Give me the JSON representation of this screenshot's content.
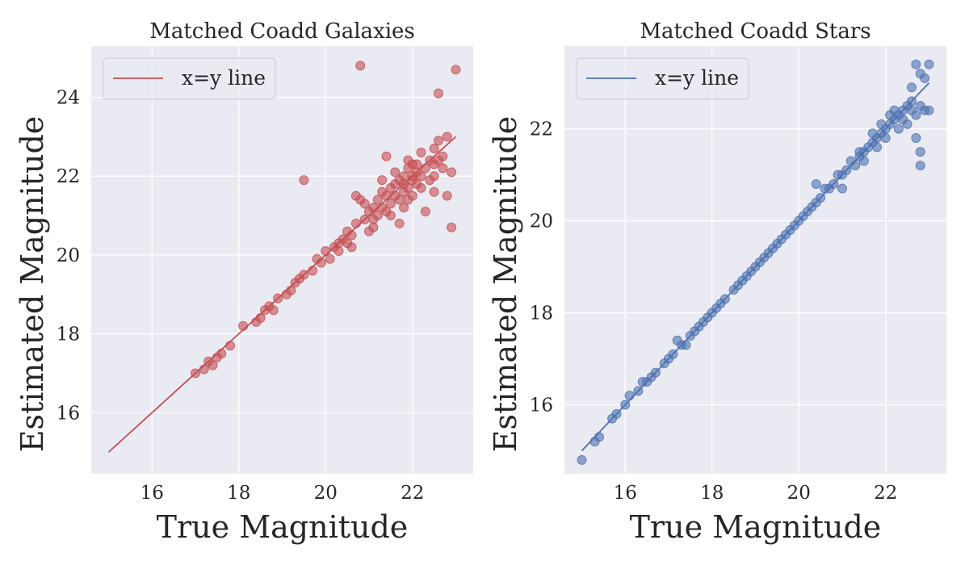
{
  "chart_data": [
    {
      "type": "scatter",
      "title": "Matched Coadd Galaxies",
      "xlabel": "True Magnitude",
      "ylabel": "Estimated Magnitude",
      "xlim": [
        14.6,
        23.4
      ],
      "ylim": [
        14.45,
        25.3
      ],
      "xticks": [
        16,
        18,
        20,
        22
      ],
      "yticks": [
        16,
        18,
        20,
        22,
        24
      ],
      "grid": true,
      "legend": {
        "position": "top-left",
        "entries": [
          "x=y line"
        ]
      },
      "colors": {
        "points": "#c44e52",
        "line": "#c44e52",
        "background": "#eaeaf2",
        "grid": "#ffffff"
      },
      "series": [
        {
          "name": "x=y line",
          "kind": "line",
          "x": [
            15.0,
            23.0
          ],
          "y": [
            15.0,
            23.0
          ]
        },
        {
          "kind": "scatter",
          "points": [
            [
              17.0,
              17.0
            ],
            [
              17.2,
              17.1
            ],
            [
              17.3,
              17.3
            ],
            [
              17.4,
              17.2
            ],
            [
              17.5,
              17.4
            ],
            [
              17.6,
              17.5
            ],
            [
              17.8,
              17.7
            ],
            [
              18.1,
              18.2
            ],
            [
              18.4,
              18.3
            ],
            [
              18.5,
              18.4
            ],
            [
              18.6,
              18.6
            ],
            [
              18.7,
              18.7
            ],
            [
              18.8,
              18.6
            ],
            [
              18.9,
              18.9
            ],
            [
              19.1,
              19.0
            ],
            [
              19.2,
              19.1
            ],
            [
              19.3,
              19.3
            ],
            [
              19.4,
              19.4
            ],
            [
              19.5,
              19.5
            ],
            [
              19.5,
              21.9
            ],
            [
              19.7,
              19.6
            ],
            [
              19.8,
              19.9
            ],
            [
              19.9,
              19.8
            ],
            [
              20.0,
              20.1
            ],
            [
              20.1,
              19.9
            ],
            [
              20.2,
              20.2
            ],
            [
              20.3,
              20.3
            ],
            [
              20.4,
              20.4
            ],
            [
              20.5,
              20.3
            ],
            [
              20.5,
              20.6
            ],
            [
              20.6,
              20.5
            ],
            [
              20.7,
              20.8
            ],
            [
              20.7,
              21.5
            ],
            [
              20.8,
              21.4
            ],
            [
              20.8,
              24.8
            ],
            [
              20.9,
              20.9
            ],
            [
              21.0,
              21.1
            ],
            [
              21.0,
              20.6
            ],
            [
              21.1,
              21.2
            ],
            [
              21.1,
              20.9
            ],
            [
              21.2,
              21.0
            ],
            [
              21.2,
              21.4
            ],
            [
              21.3,
              21.2
            ],
            [
              21.3,
              21.6
            ],
            [
              21.4,
              21.5
            ],
            [
              21.4,
              21.1
            ],
            [
              21.4,
              22.5
            ],
            [
              21.5,
              21.7
            ],
            [
              21.5,
              21.3
            ],
            [
              21.5,
              21.0
            ],
            [
              21.6,
              21.8
            ],
            [
              21.6,
              21.5
            ],
            [
              21.7,
              21.9
            ],
            [
              21.7,
              20.8
            ],
            [
              21.7,
              21.4
            ],
            [
              21.8,
              21.8
            ],
            [
              21.8,
              22.0
            ],
            [
              21.8,
              21.6
            ],
            [
              21.9,
              22.2
            ],
            [
              21.9,
              21.7
            ],
            [
              21.9,
              22.4
            ],
            [
              22.0,
              22.0
            ],
            [
              22.0,
              21.5
            ],
            [
              22.0,
              21.9
            ],
            [
              22.1,
              22.1
            ],
            [
              22.1,
              21.8
            ],
            [
              22.1,
              22.3
            ],
            [
              22.2,
              22.0
            ],
            [
              22.2,
              22.6
            ],
            [
              22.3,
              21.1
            ],
            [
              22.3,
              22.2
            ],
            [
              22.4,
              22.4
            ],
            [
              22.4,
              21.9
            ],
            [
              22.5,
              22.7
            ],
            [
              22.5,
              21.6
            ],
            [
              22.5,
              22.3
            ],
            [
              22.6,
              22.9
            ],
            [
              22.6,
              24.1
            ],
            [
              22.6,
              22.4
            ],
            [
              22.7,
              22.5
            ],
            [
              22.7,
              22.2
            ],
            [
              22.8,
              23.0
            ],
            [
              22.8,
              21.5
            ],
            [
              22.9,
              20.7
            ],
            [
              22.9,
              22.1
            ],
            [
              23.0,
              24.7
            ],
            [
              21.6,
              22.1
            ],
            [
              21.9,
              21.4
            ],
            [
              22.2,
              21.7
            ],
            [
              20.9,
              21.3
            ],
            [
              21.1,
              20.7
            ],
            [
              20.6,
              20.2
            ],
            [
              21.3,
              21.9
            ],
            [
              22.0,
              22.3
            ],
            [
              21.8,
              21.2
            ],
            [
              22.5,
              22.0
            ],
            [
              20.3,
              20.1
            ]
          ]
        }
      ]
    },
    {
      "type": "scatter",
      "title": "Matched Coadd Stars",
      "xlabel": "True Magnitude",
      "ylabel": "Estimated Magnitude",
      "xlim": [
        14.6,
        23.4
      ],
      "ylim": [
        14.5,
        23.8
      ],
      "xticks": [
        16,
        18,
        20,
        22
      ],
      "yticks": [
        16,
        18,
        20,
        22
      ],
      "grid": true,
      "legend": {
        "position": "top-left",
        "entries": [
          "x=y line"
        ]
      },
      "colors": {
        "points": "#4c72b0",
        "line": "#4c72b0",
        "background": "#eaeaf2",
        "grid": "#ffffff"
      },
      "series": [
        {
          "name": "x=y line",
          "kind": "line",
          "x": [
            15.0,
            23.0
          ],
          "y": [
            15.0,
            23.0
          ]
        },
        {
          "kind": "scatter",
          "points": [
            [
              15.0,
              14.8
            ],
            [
              15.3,
              15.2
            ],
            [
              15.4,
              15.3
            ],
            [
              15.7,
              15.7
            ],
            [
              15.8,
              15.8
            ],
            [
              16.0,
              16.0
            ],
            [
              16.1,
              16.2
            ],
            [
              16.3,
              16.3
            ],
            [
              16.4,
              16.5
            ],
            [
              16.5,
              16.5
            ],
            [
              16.6,
              16.6
            ],
            [
              16.7,
              16.7
            ],
            [
              16.9,
              16.9
            ],
            [
              17.0,
              17.0
            ],
            [
              17.1,
              17.1
            ],
            [
              17.2,
              17.4
            ],
            [
              17.3,
              17.3
            ],
            [
              17.4,
              17.3
            ],
            [
              17.5,
              17.5
            ],
            [
              17.6,
              17.6
            ],
            [
              17.7,
              17.7
            ],
            [
              17.8,
              17.8
            ],
            [
              17.9,
              17.9
            ],
            [
              18.0,
              18.0
            ],
            [
              18.1,
              18.1
            ],
            [
              18.2,
              18.2
            ],
            [
              18.3,
              18.3
            ],
            [
              18.5,
              18.5
            ],
            [
              18.6,
              18.6
            ],
            [
              18.7,
              18.7
            ],
            [
              18.8,
              18.8
            ],
            [
              18.9,
              18.9
            ],
            [
              19.0,
              19.0
            ],
            [
              19.1,
              19.1
            ],
            [
              19.2,
              19.2
            ],
            [
              19.3,
              19.3
            ],
            [
              19.4,
              19.4
            ],
            [
              19.5,
              19.5
            ],
            [
              19.6,
              19.6
            ],
            [
              19.7,
              19.7
            ],
            [
              19.8,
              19.8
            ],
            [
              19.9,
              19.9
            ],
            [
              20.0,
              20.0
            ],
            [
              20.1,
              20.1
            ],
            [
              20.2,
              20.2
            ],
            [
              20.3,
              20.3
            ],
            [
              20.4,
              20.4
            ],
            [
              20.5,
              20.5
            ],
            [
              20.6,
              20.7
            ],
            [
              20.7,
              20.7
            ],
            [
              20.8,
              20.8
            ],
            [
              20.9,
              21.0
            ],
            [
              21.0,
              21.0
            ],
            [
              21.0,
              20.7
            ],
            [
              21.1,
              21.1
            ],
            [
              21.2,
              21.3
            ],
            [
              21.3,
              21.2
            ],
            [
              21.4,
              21.4
            ],
            [
              21.4,
              21.5
            ],
            [
              21.5,
              21.5
            ],
            [
              21.6,
              21.6
            ],
            [
              21.7,
              21.7
            ],
            [
              21.8,
              21.8
            ],
            [
              21.8,
              21.6
            ],
            [
              21.9,
              21.9
            ],
            [
              22.0,
              22.0
            ],
            [
              22.0,
              21.8
            ],
            [
              22.1,
              22.1
            ],
            [
              22.1,
              22.3
            ],
            [
              22.2,
              22.2
            ],
            [
              22.2,
              22.4
            ],
            [
              22.3,
              22.3
            ],
            [
              22.3,
              22.0
            ],
            [
              22.4,
              22.4
            ],
            [
              22.4,
              22.2
            ],
            [
              22.5,
              22.5
            ],
            [
              22.5,
              22.1
            ],
            [
              22.6,
              22.6
            ],
            [
              22.6,
              22.9
            ],
            [
              22.7,
              23.4
            ],
            [
              22.7,
              22.3
            ],
            [
              22.7,
              21.8
            ],
            [
              22.8,
              23.2
            ],
            [
              22.8,
              21.5
            ],
            [
              22.8,
              21.2
            ],
            [
              22.8,
              22.5
            ],
            [
              22.9,
              23.1
            ],
            [
              22.9,
              22.4
            ],
            [
              23.0,
              23.4
            ],
            [
              23.0,
              22.4
            ],
            [
              21.5,
              21.3
            ],
            [
              21.9,
              22.1
            ],
            [
              22.6,
              22.4
            ],
            [
              20.4,
              20.8
            ],
            [
              21.7,
              21.9
            ]
          ]
        }
      ]
    }
  ]
}
